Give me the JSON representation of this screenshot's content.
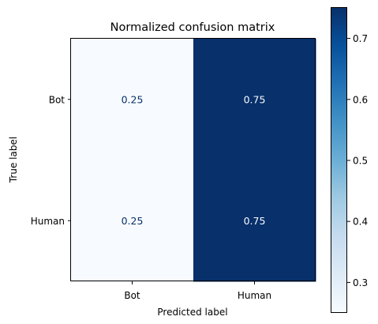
{
  "chart_data": {
    "type": "heatmap",
    "title": "Normalized confusion matrix",
    "xlabel": "Predicted label",
    "ylabel": "True label",
    "x_categories": [
      "Bot",
      "Human"
    ],
    "y_categories": [
      "Bot",
      "Human"
    ],
    "values": [
      [
        0.25,
        0.75
      ],
      [
        0.25,
        0.75
      ]
    ],
    "cell_labels": [
      [
        "0.25",
        "0.75"
      ],
      [
        "0.25",
        "0.75"
      ]
    ],
    "colormap": "Blues",
    "colors": {
      "low": "#f7fbff",
      "high": "#08306b",
      "text_on_light": "#08306b",
      "text_on_dark": "#f7fbff"
    },
    "colorbar": {
      "range": [
        0.25,
        0.75
      ],
      "ticks": [
        0.3,
        0.4,
        0.5,
        0.6,
        0.7
      ],
      "tick_labels": [
        "0.3",
        "0.4",
        "0.5",
        "0.6",
        "0.7"
      ]
    }
  }
}
